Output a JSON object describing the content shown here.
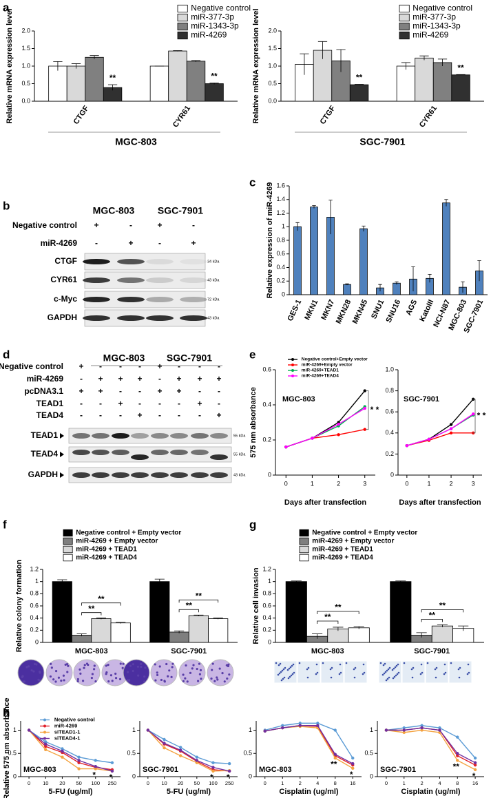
{
  "panel_labels": [
    "a",
    "b",
    "c",
    "d",
    "e",
    "f",
    "g",
    "h"
  ],
  "blot_b": {
    "column_headers": [
      "MGC-803",
      "SGC-7901"
    ],
    "conditions": [
      {
        "label": "Negative control",
        "marks": [
          "+",
          "-",
          "+",
          "-"
        ]
      },
      {
        "label": "miR-4269",
        "marks": [
          "-",
          "+",
          "-",
          "+"
        ]
      }
    ],
    "bands": [
      {
        "label": "CTGF",
        "size": "34 kDa"
      },
      {
        "label": "CYR61",
        "size": "43 kDa"
      },
      {
        "label": "c-Myc",
        "size": "72 kDa"
      },
      {
        "label": "GAPDH",
        "size": "43 kDa"
      }
    ]
  },
  "blot_d": {
    "column_headers": [
      "MGC-803",
      "SGC-7901"
    ],
    "conditions": [
      {
        "label": "Negative control",
        "marks": [
          "+",
          "-",
          "-",
          "-",
          "+",
          "-",
          "-",
          "-"
        ]
      },
      {
        "label": "miR-4269",
        "marks": [
          "-",
          "+",
          "+",
          "+",
          "-",
          "+",
          "+",
          "+"
        ]
      },
      {
        "label": "pcDNA3.1",
        "marks": [
          "+",
          "+",
          "-",
          "-",
          "+",
          "+",
          "-",
          "-"
        ]
      },
      {
        "label": "TEAD1",
        "marks": [
          "-",
          "-",
          "+",
          "-",
          "-",
          "-",
          "+",
          "-"
        ]
      },
      {
        "label": "TEAD4",
        "marks": [
          "-",
          "-",
          "-",
          "+",
          "-",
          "-",
          "-",
          "+"
        ]
      }
    ],
    "bands": [
      {
        "label": "TEAD1",
        "size": "55 kDa"
      },
      {
        "label": "TEAD4",
        "size": "55 kDa"
      },
      {
        "label": "GAPDH",
        "size": "43 kDa"
      }
    ]
  },
  "chart_data": [
    {
      "type": "bar",
      "y_label": "Relative mRNA expression level",
      "categories": [
        "CTGF",
        "CYR61"
      ],
      "group_label": "MGC-803",
      "ylim": [
        0,
        2
      ],
      "yticks": [
        {
          "value": 0,
          "label": "0.0"
        },
        0.5,
        {
          "value": 1,
          "label": "1.0"
        },
        1.5,
        {
          "value": 2,
          "label": "2.0"
        }
      ],
      "legend": true,
      "series": [
        {
          "name": "Negative control",
          "color": "#ffffff",
          "values": [
            1.0,
            1.0
          ],
          "errors": [
            0.13,
            0.0
          ]
        },
        {
          "name": "miR-377-3p",
          "color": "#d9d9d9",
          "values": [
            1.0,
            1.43
          ],
          "errors": [
            0.07,
            0.01
          ]
        },
        {
          "name": "miR-1343-3p",
          "color": "#808080",
          "values": [
            1.25,
            1.14
          ],
          "errors": [
            0.05,
            0.02
          ]
        },
        {
          "name": "miR-4269",
          "color": "#303030",
          "values": [
            0.39,
            0.5
          ],
          "errors": [
            0.08,
            0.02
          ],
          "significance": [
            "**",
            "**"
          ]
        }
      ]
    },
    {
      "type": "bar",
      "y_label": "Relative mRNA expression level",
      "categories": [
        "CTGF",
        "CYR61"
      ],
      "group_label": "SGC-7901",
      "ylim": [
        0,
        2
      ],
      "yticks": [
        {
          "value": 0,
          "label": "0.0"
        },
        0.5,
        {
          "value": 1,
          "label": "1.0"
        },
        1.5,
        {
          "value": 2,
          "label": "2.0"
        }
      ],
      "legend": true,
      "series": [
        {
          "name": "Negative control",
          "color": "#ffffff",
          "values": [
            1.05,
            1.0
          ],
          "errors": [
            0.3,
            0.1
          ]
        },
        {
          "name": "miR-377-3p",
          "color": "#d9d9d9",
          "values": [
            1.45,
            1.23
          ],
          "errors": [
            0.25,
            0.06
          ]
        },
        {
          "name": "miR-1343-3p",
          "color": "#808080",
          "values": [
            1.15,
            1.1
          ],
          "errors": [
            0.32,
            0.1
          ]
        },
        {
          "name": "miR-4269",
          "color": "#303030",
          "values": [
            0.47,
            0.75
          ],
          "errors": [
            0.01,
            0.01
          ],
          "significance": [
            "**",
            "**"
          ]
        }
      ]
    },
    {
      "type": "bar",
      "y_label": "Relative expression of miR-4269",
      "categories": [
        "GES-1",
        "MKN1",
        "MKN7",
        "MKN28",
        "MKN45",
        "SNU1",
        "SNU16",
        "AGS",
        "KatoIII",
        "NCI-N87",
        "MGC-803",
        "SGC-7901"
      ],
      "ylim": [
        0,
        1.6
      ],
      "yticks": [
        0,
        0.2,
        0.4,
        0.6,
        0.8,
        1,
        1.2,
        1.4,
        1.6
      ],
      "series": [
        {
          "color": "#4f81bd",
          "values": [
            1.0,
            1.29,
            1.14,
            0.15,
            0.97,
            0.1,
            0.17,
            0.23,
            0.24,
            1.35,
            0.11,
            0.35
          ],
          "errors": [
            0.06,
            0.02,
            0.25,
            0.01,
            0.04,
            0.05,
            0.02,
            0.18,
            0.06,
            0.05,
            0.08,
            0.15
          ]
        }
      ]
    },
    {
      "type": "line",
      "y_label": "575 nm absorbance",
      "x_label": "Days after transfection",
      "inset_label": "MGC-803",
      "x": [
        0,
        1,
        2,
        3
      ],
      "xlim": [
        -0.4,
        3.4
      ],
      "xticks": [
        0,
        1,
        2,
        3
      ],
      "ylim": [
        0,
        0.6
      ],
      "yticks": [
        0,
        0.2,
        0.4,
        0.6
      ],
      "legend": true,
      "significance": [
        "*",
        "*"
      ],
      "series": [
        {
          "name": "Negative control+Empty vector",
          "color": "#000000",
          "values": [
            0.16,
            0.21,
            0.3,
            0.48
          ]
        },
        {
          "name": "miR-4269+Empty vector",
          "color": "#ff0000",
          "values": [
            0.16,
            0.21,
            0.23,
            0.26
          ]
        },
        {
          "name": "miR-4269+TEAD1",
          "color": "#00b050",
          "values": [
            0.16,
            0.21,
            0.28,
            0.39
          ]
        },
        {
          "name": "miR-4269+TEAD4",
          "color": "#ff00ff",
          "values": [
            0.16,
            0.21,
            0.29,
            0.38
          ]
        }
      ]
    },
    {
      "type": "line",
      "x_label": "Days after transfection",
      "inset_label": "SGC-7901",
      "x": [
        0,
        1,
        2,
        3
      ],
      "xlim": [
        -0.4,
        3.4
      ],
      "xticks": [
        0,
        1,
        2,
        3
      ],
      "ylim": [
        0,
        1
      ],
      "yticks": [
        0,
        0.2,
        0.4,
        0.6,
        0.8,
        {
          "value": 1,
          "label": "1.0"
        }
      ],
      "significance": [
        "*",
        "*"
      ],
      "series": [
        {
          "color": "#000000",
          "values": [
            0.28,
            0.34,
            0.48,
            0.72
          ]
        },
        {
          "color": "#ff0000",
          "values": [
            0.28,
            0.33,
            0.4,
            0.4
          ]
        },
        {
          "color": "#00b050",
          "values": [
            0.28,
            0.34,
            0.44,
            0.57
          ]
        },
        {
          "color": "#ff00ff",
          "values": [
            0.28,
            0.34,
            0.44,
            0.58
          ]
        }
      ]
    },
    {
      "type": "bar",
      "y_label": "Relative colony formation",
      "categories": [
        "MGC-803",
        "SGC-7901"
      ],
      "ylim": [
        0,
        1.2
      ],
      "yticks": [
        0,
        0.2,
        0.4,
        0.6,
        0.8,
        1,
        1.2
      ],
      "legend": true,
      "significance": [
        "**",
        "**",
        "**",
        "**"
      ],
      "series": [
        {
          "name": "Negative control + Empty vector",
          "color": "#000000",
          "values": [
            1.0,
            1.0
          ],
          "errors": [
            0.03,
            0.04
          ]
        },
        {
          "name": "miR-4269 + Empty vector",
          "color": "#7f7f7f",
          "values": [
            0.12,
            0.17
          ],
          "errors": [
            0.02,
            0.02
          ]
        },
        {
          "name": "miR-4269 + TEAD1",
          "color": "#d9d9d9",
          "values": [
            0.39,
            0.44
          ],
          "errors": [
            0.01,
            0.01
          ]
        },
        {
          "name": "miR-4269 + TEAD4",
          "color": "#ffffff",
          "values": [
            0.32,
            0.39
          ],
          "errors": [
            0.01,
            0.01
          ]
        }
      ]
    },
    {
      "type": "bar",
      "y_label": "Relative cell invasion",
      "categories": [
        "MGC-803",
        "SGC-7901"
      ],
      "ylim": [
        0,
        1.2
      ],
      "yticks": [
        0,
        0.2,
        0.4,
        0.6,
        0.8,
        1,
        1.2
      ],
      "legend": true,
      "significance": [
        "**",
        "**",
        "**",
        "**"
      ],
      "series": [
        {
          "name": "Negative control + Empty vector",
          "color": "#000000",
          "values": [
            1.0,
            1.0
          ],
          "errors": [
            0.01,
            0.01
          ]
        },
        {
          "name": "miR-4269 + Empty vector",
          "color": "#7f7f7f",
          "values": [
            0.1,
            0.12
          ],
          "errors": [
            0.04,
            0.04
          ]
        },
        {
          "name": "miR-4269 + TEAD1",
          "color": "#d9d9d9",
          "values": [
            0.22,
            0.27
          ],
          "errors": [
            0.03,
            0.02
          ]
        },
        {
          "name": "miR-4269 + TEAD4",
          "color": "#ffffff",
          "values": [
            0.24,
            0.23
          ],
          "errors": [
            0.02,
            0.04
          ]
        }
      ]
    },
    {
      "type": "line",
      "y_label": "Relative 575 nm absorbance",
      "x_label": "5-FU (ug/ml)",
      "inset_label": "MGC-803",
      "categories": [
        "0",
        "10",
        "20",
        "50",
        "100",
        "250"
      ],
      "ylim": [
        0,
        1.2
      ],
      "yticks": [
        0,
        0.5,
        1
      ],
      "legend": true,
      "significance": [
        "*",
        "*"
      ],
      "series": [
        {
          "name": "Negative control",
          "color": "#5b9bd5",
          "values": [
            1.0,
            0.75,
            0.6,
            0.42,
            0.35,
            0.3
          ]
        },
        {
          "name": "miR-4269",
          "color": "#e0202a",
          "values": [
            1.0,
            0.65,
            0.52,
            0.3,
            0.2,
            0.15
          ]
        },
        {
          "name": "siTEAD1-1",
          "color": "#f4a340",
          "values": [
            1.0,
            0.58,
            0.42,
            0.17,
            0.17,
            0.12
          ]
        },
        {
          "name": "siTEAD4-1",
          "color": "#7030a0",
          "values": [
            1.0,
            0.7,
            0.55,
            0.35,
            0.22,
            0.12
          ]
        }
      ]
    },
    {
      "type": "line",
      "x_label": "5-FU (ug/ml)",
      "inset_label": "SGC-7901",
      "categories": [
        "0",
        "10",
        "20",
        "50",
        "100",
        "250"
      ],
      "ylim": [
        0,
        1.2
      ],
      "yticks": [
        0,
        0.5,
        1
      ],
      "significance": [
        "*",
        "*"
      ],
      "series": [
        {
          "color": "#5b9bd5",
          "values": [
            1.0,
            0.8,
            0.63,
            0.42,
            0.3,
            0.28
          ]
        },
        {
          "color": "#e0202a",
          "values": [
            1.0,
            0.7,
            0.55,
            0.33,
            0.15,
            0.12
          ]
        },
        {
          "color": "#f4a340",
          "values": [
            1.0,
            0.62,
            0.45,
            0.3,
            0.12,
            0.13
          ]
        },
        {
          "color": "#7030a0",
          "values": [
            1.0,
            0.72,
            0.57,
            0.35,
            0.2,
            0.12
          ]
        }
      ]
    },
    {
      "type": "line",
      "x_label": "Cisplatin (ug/ml)",
      "inset_label": "MGC-803",
      "categories": [
        "0",
        "1",
        "2",
        "4",
        "8",
        "16"
      ],
      "ylim": [
        0,
        1.2
      ],
      "yticks": [
        0,
        0.5,
        1
      ],
      "significance": [
        "**",
        "*"
      ],
      "series": [
        {
          "color": "#5b9bd5",
          "values": [
            1.0,
            1.1,
            1.15,
            1.15,
            1.0,
            0.4
          ]
        },
        {
          "color": "#e0202a",
          "values": [
            0.98,
            1.05,
            1.1,
            1.08,
            0.45,
            0.25
          ]
        },
        {
          "color": "#f4a340",
          "values": [
            0.98,
            1.05,
            1.08,
            1.05,
            0.4,
            0.18
          ]
        },
        {
          "color": "#7030a0",
          "values": [
            0.98,
            1.05,
            1.1,
            1.1,
            0.48,
            0.28
          ]
        }
      ]
    },
    {
      "type": "line",
      "x_label": "Cisplatin (ug/ml)",
      "inset_label": "SGC-7901",
      "categories": [
        "0",
        "1",
        "2",
        "4",
        "8",
        "16"
      ],
      "ylim": [
        0,
        1.2
      ],
      "yticks": [
        0,
        0.5,
        1
      ],
      "significance": [
        "**",
        "*"
      ],
      "series": [
        {
          "color": "#5b9bd5",
          "values": [
            1.0,
            1.05,
            1.1,
            1.05,
            0.85,
            0.4
          ]
        },
        {
          "color": "#e0202a",
          "values": [
            1.0,
            1.0,
            1.05,
            1.0,
            0.45,
            0.25
          ]
        },
        {
          "color": "#f4a340",
          "values": [
            1.0,
            0.95,
            1.0,
            0.95,
            0.35,
            0.15
          ]
        },
        {
          "color": "#7030a0",
          "values": [
            1.0,
            1.0,
            1.05,
            1.0,
            0.5,
            0.3
          ]
        }
      ]
    }
  ]
}
